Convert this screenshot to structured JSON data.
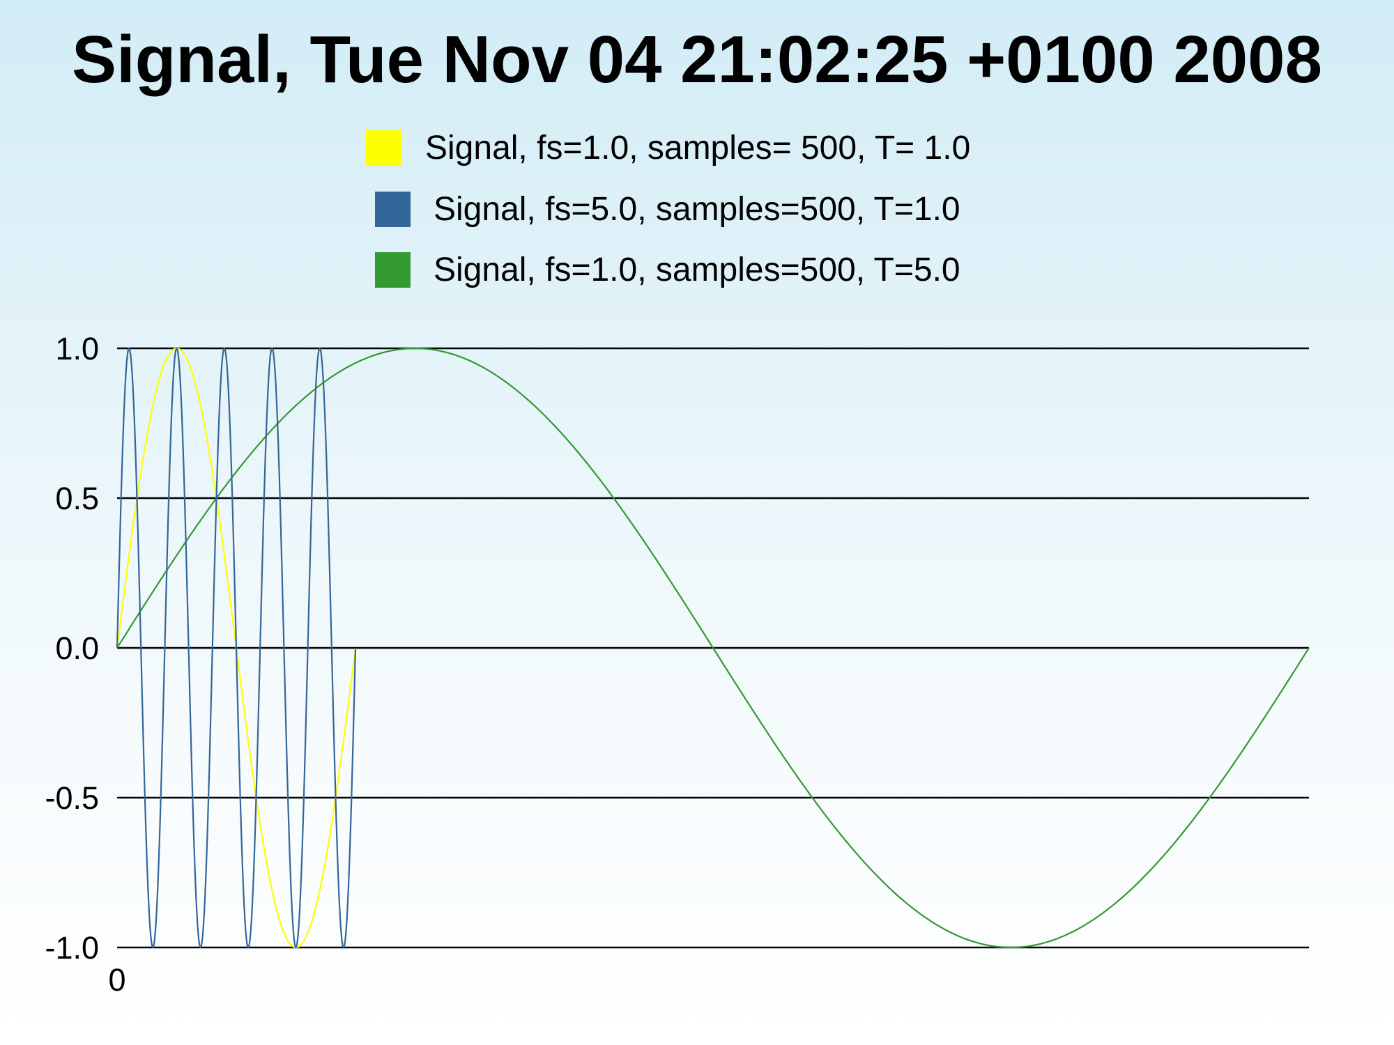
{
  "chart_data": {
    "type": "line",
    "title": "Signal, Tue Nov 04 21:02:25 +0100 2008",
    "xlabel": "",
    "ylabel": "",
    "ylim": [
      -1.0,
      1.0
    ],
    "xlim": [
      0,
      5.0
    ],
    "y_ticks": [
      "1.0",
      "0.5",
      "0.0",
      "-0.5",
      "-1.0"
    ],
    "y_tick_values": [
      1.0,
      0.5,
      0.0,
      -0.5,
      -1.0
    ],
    "x_ticks": [
      "0"
    ],
    "x_tick_values": [
      0
    ],
    "grid": "horizontal",
    "legend_position": "top-center",
    "series": [
      {
        "name": "Signal, fs=1.0, samples= 500, T= 1.0",
        "color": "#ffff00",
        "function": "sine",
        "frequency": 1.0,
        "amplitude": 1.0,
        "x_range": [
          0,
          1.0
        ],
        "samples": 500
      },
      {
        "name": "Signal, fs=5.0, samples=500, T=1.0",
        "color": "#336699",
        "function": "sine",
        "frequency": 5.0,
        "amplitude": 1.0,
        "x_range": [
          0,
          1.0
        ],
        "samples": 500
      },
      {
        "name": "Signal, fs=1.0, samples=500, T=5.0",
        "color": "#339933",
        "function": "sine",
        "frequency": 0.2,
        "amplitude": 1.0,
        "x_range": [
          0,
          5.0
        ],
        "samples": 500
      }
    ]
  }
}
